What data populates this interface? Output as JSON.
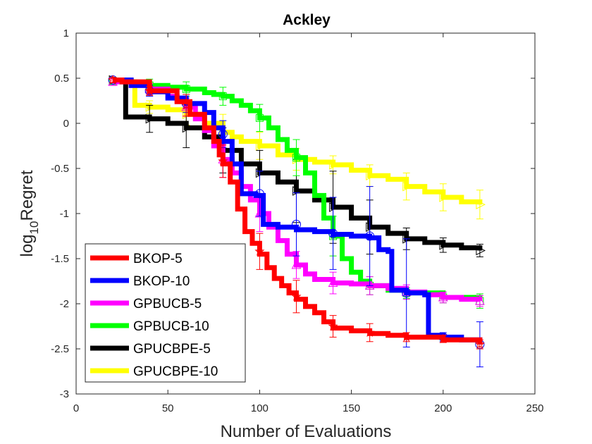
{
  "chart_data": {
    "type": "line",
    "title": "Ackley",
    "xlabel": "Number of Evaluations",
    "ylabel_main": "log",
    "ylabel_sub": "10",
    "ylabel_tail": "Regret",
    "xlim": [
      0,
      250
    ],
    "ylim": [
      -3,
      1
    ],
    "xticks": [
      0,
      50,
      100,
      150,
      200,
      250
    ],
    "yticks": [
      -3,
      -2.5,
      -2,
      -1.5,
      -1,
      -0.5,
      0,
      0.5,
      1
    ],
    "xtick_labels": [
      "0",
      "50",
      "100",
      "150",
      "200",
      "250"
    ],
    "ytick_labels": [
      "-3",
      "-2.5",
      "-2",
      "-1.5",
      "-1",
      "-0.5",
      "0",
      "0.5",
      "1"
    ],
    "legend_position": "bottom-left",
    "series": [
      {
        "name": "BKOP-5",
        "color": "#ff0000",
        "marker": "star",
        "x": [
          20,
          25,
          40,
          55,
          62,
          70,
          75,
          78,
          80,
          84,
          88,
          92,
          96,
          100,
          104,
          108,
          112,
          116,
          120,
          125,
          130,
          135,
          140,
          150,
          160,
          170,
          180,
          200,
          220
        ],
        "y": [
          0.48,
          0.46,
          0.36,
          0.24,
          0.1,
          -0.05,
          -0.2,
          -0.35,
          -0.45,
          -0.65,
          -0.95,
          -1.2,
          -1.33,
          -1.45,
          -1.6,
          -1.72,
          -1.8,
          -1.88,
          -1.95,
          -2.03,
          -2.1,
          -2.2,
          -2.27,
          -2.3,
          -2.33,
          -2.35,
          -2.37,
          -2.4,
          -2.45
        ],
        "errors_x": [
          20,
          40,
          60,
          80,
          100,
          120,
          140,
          160,
          180,
          200,
          220
        ],
        "errors_y": [
          0.48,
          0.36,
          0.2,
          -0.42,
          -1.42,
          -1.92,
          -2.25,
          -2.32,
          -2.37,
          -2.39,
          -2.45
        ],
        "errors_err": [
          0.03,
          0.05,
          0.12,
          0.18,
          0.2,
          0.18,
          0.12,
          0.1,
          0.05,
          0.04,
          0.05
        ]
      },
      {
        "name": "BKOP-10",
        "color": "#0000ff",
        "marker": "circle",
        "x": [
          20,
          30,
          40,
          50,
          60,
          70,
          75,
          80,
          85,
          90,
          98,
          102,
          110,
          120,
          130,
          140,
          150,
          160,
          165,
          170,
          172,
          180,
          190,
          192,
          200,
          210,
          220
        ],
        "y": [
          0.48,
          0.42,
          0.35,
          0.28,
          0.22,
          0.12,
          -0.05,
          -0.2,
          -0.45,
          -0.78,
          -0.8,
          -1.12,
          -1.15,
          -1.18,
          -1.2,
          -1.23,
          -1.25,
          -1.27,
          -1.4,
          -1.42,
          -1.85,
          -1.88,
          -1.9,
          -2.35,
          -2.37,
          -2.4,
          -2.45
        ],
        "errors_x": [
          20,
          40,
          60,
          80,
          100,
          120,
          140,
          160,
          180,
          200,
          220
        ],
        "errors_y": [
          0.48,
          0.36,
          0.22,
          -0.12,
          -0.78,
          -1.12,
          -1.22,
          -1.25,
          -1.88,
          -2.37,
          -2.45
        ],
        "errors_err": [
          0.03,
          0.06,
          0.1,
          0.15,
          0.25,
          0.35,
          0.4,
          0.55,
          0.6,
          0.05,
          0.25
        ]
      },
      {
        "name": "GPBUCB-5",
        "color": "#ff00ff",
        "marker": "triangle",
        "x": [
          20,
          30,
          40,
          50,
          55,
          60,
          65,
          70,
          75,
          80,
          85,
          90,
          95,
          100,
          105,
          110,
          115,
          120,
          125,
          130,
          140,
          150,
          160,
          170,
          180,
          190,
          200,
          210,
          220
        ],
        "y": [
          0.46,
          0.42,
          0.38,
          0.3,
          0.25,
          0.18,
          0.05,
          -0.08,
          -0.25,
          -0.4,
          -0.55,
          -0.7,
          -0.85,
          -1.0,
          -1.15,
          -1.3,
          -1.45,
          -1.57,
          -1.67,
          -1.73,
          -1.77,
          -1.78,
          -1.8,
          -1.83,
          -1.87,
          -1.9,
          -1.93,
          -1.95,
          -1.97
        ],
        "errors_x": [
          20,
          40,
          60,
          80,
          100,
          120,
          140,
          160,
          180,
          200,
          220
        ],
        "errors_y": [
          0.46,
          0.38,
          0.18,
          -0.4,
          -1.0,
          -1.57,
          -1.77,
          -1.8,
          -1.87,
          -1.93,
          -1.97
        ],
        "errors_err": [
          0.04,
          0.06,
          0.1,
          0.2,
          0.2,
          0.15,
          0.12,
          0.1,
          0.08,
          0.06,
          0.06
        ]
      },
      {
        "name": "GPBUCB-10",
        "color": "#00ff00",
        "marker": "square",
        "x": [
          20,
          30,
          40,
          50,
          60,
          70,
          75,
          80,
          85,
          90,
          95,
          100,
          105,
          110,
          115,
          120,
          125,
          130,
          135,
          140,
          145,
          150,
          155,
          160,
          170,
          180,
          200,
          220
        ],
        "y": [
          0.47,
          0.45,
          0.42,
          0.4,
          0.38,
          0.34,
          0.32,
          0.3,
          0.25,
          0.2,
          0.14,
          0.06,
          -0.05,
          -0.18,
          -0.3,
          -0.38,
          -0.55,
          -0.8,
          -1.05,
          -1.25,
          -1.5,
          -1.65,
          -1.75,
          -1.8,
          -1.85,
          -1.88,
          -1.93,
          -1.97
        ],
        "errors_x": [
          20,
          40,
          60,
          80,
          100,
          120,
          140,
          160,
          180,
          200,
          220
        ],
        "errors_y": [
          0.47,
          0.42,
          0.38,
          0.3,
          0.06,
          -0.38,
          -1.25,
          -1.8,
          -1.88,
          -1.93,
          -1.97
        ],
        "errors_err": [
          0.03,
          0.07,
          0.08,
          0.1,
          0.15,
          0.2,
          0.22,
          0.1,
          0.06,
          0.06,
          0.08
        ]
      },
      {
        "name": "GPUCBPE-5",
        "color": "#000000",
        "marker": "triangle-right",
        "x": [
          20,
          25,
          27,
          40,
          50,
          60,
          70,
          80,
          90,
          100,
          110,
          120,
          130,
          140,
          150,
          160,
          170,
          180,
          190,
          200,
          210,
          220
        ],
        "y": [
          0.48,
          0.46,
          0.07,
          0.05,
          0.0,
          -0.05,
          -0.15,
          -0.3,
          -0.45,
          -0.55,
          -0.65,
          -0.75,
          -0.85,
          -0.93,
          -1.05,
          -1.15,
          -1.22,
          -1.28,
          -1.32,
          -1.35,
          -1.38,
          -1.41
        ],
        "errors_x": [
          20,
          40,
          60,
          80,
          100,
          120,
          140,
          160,
          180,
          200,
          220
        ],
        "errors_y": [
          0.48,
          0.05,
          -0.05,
          -0.3,
          -0.55,
          -0.75,
          -0.93,
          -1.15,
          -1.28,
          -1.35,
          -1.41
        ],
        "errors_err": [
          0.03,
          0.15,
          0.22,
          0.25,
          0.25,
          0.35,
          0.4,
          0.3,
          0.12,
          0.08,
          0.07
        ]
      },
      {
        "name": "GPUCBPE-10",
        "color": "#ffff00",
        "marker": "triangle-right",
        "x": [
          20,
          30,
          32,
          40,
          50,
          60,
          70,
          80,
          85,
          90,
          100,
          110,
          120,
          130,
          140,
          150,
          160,
          170,
          180,
          190,
          200,
          210,
          220
        ],
        "y": [
          0.48,
          0.46,
          0.2,
          0.18,
          0.15,
          0.1,
          0.0,
          -0.1,
          -0.15,
          -0.2,
          -0.25,
          -0.35,
          -0.4,
          -0.43,
          -0.46,
          -0.52,
          -0.58,
          -0.62,
          -0.7,
          -0.76,
          -0.82,
          -0.87,
          -0.9
        ],
        "errors_x": [
          20,
          40,
          60,
          80,
          100,
          120,
          140,
          160,
          180,
          200,
          220
        ],
        "errors_y": [
          0.48,
          0.18,
          0.1,
          -0.1,
          -0.25,
          -0.4,
          -0.46,
          -0.58,
          -0.7,
          -0.82,
          -0.9
        ],
        "errors_err": [
          0.03,
          0.07,
          0.12,
          0.2,
          0.15,
          0.12,
          0.1,
          0.12,
          0.15,
          0.15,
          0.16
        ]
      }
    ]
  }
}
